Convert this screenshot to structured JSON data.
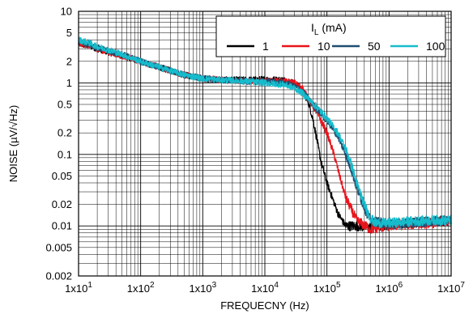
{
  "chart_data": {
    "type": "line",
    "xlabel": "FREQUECNY (Hz)",
    "ylabel": "NOISE (µV/√Hz)",
    "x_scale": "log",
    "y_scale": "log",
    "xlim": [
      10,
      10000000
    ],
    "ylim": [
      0.002,
      10
    ],
    "grid": true,
    "x_ticks": [
      {
        "value": 10,
        "base": "1x10",
        "exp": "1"
      },
      {
        "value": 100,
        "base": "1x10",
        "exp": "2"
      },
      {
        "value": 1000,
        "base": "1x10",
        "exp": "3"
      },
      {
        "value": 10000,
        "base": "1x10",
        "exp": "4"
      },
      {
        "value": 100000,
        "base": "1x10",
        "exp": "5"
      },
      {
        "value": 1000000,
        "base": "1x10",
        "exp": "6"
      },
      {
        "value": 10000000,
        "base": "1x10",
        "exp": "7"
      }
    ],
    "y_ticks": [
      {
        "value": 10,
        "label": "10"
      },
      {
        "value": 5,
        "label": "5"
      },
      {
        "value": 2,
        "label": "2"
      },
      {
        "value": 1,
        "label": "1"
      },
      {
        "value": 0.5,
        "label": "0.5"
      },
      {
        "value": 0.2,
        "label": "0.2"
      },
      {
        "value": 0.1,
        "label": "0.1"
      },
      {
        "value": 0.05,
        "label": "0.05"
      },
      {
        "value": 0.02,
        "label": "0.02"
      },
      {
        "value": 0.01,
        "label": "0.01"
      },
      {
        "value": 0.005,
        "label": "0.005"
      },
      {
        "value": 0.002,
        "label": "0.002"
      }
    ],
    "legend": {
      "title_main": "I",
      "title_sub": "L",
      "title_rest": " (mA)",
      "placement": "top-right"
    },
    "series": [
      {
        "name": "1",
        "color": "#000000",
        "x": [
          10,
          15,
          20,
          30,
          50,
          100,
          200,
          500,
          1000,
          2000,
          5000,
          10000,
          20000,
          30000,
          40000,
          50000,
          60000,
          70000,
          80000,
          100000,
          150000,
          200000,
          300000,
          500000,
          1000000,
          2000000,
          5000000,
          10000000
        ],
        "y": [
          3.5,
          3.3,
          3.0,
          2.7,
          2.4,
          2.0,
          1.65,
          1.3,
          1.15,
          1.1,
          1.1,
          1.12,
          1.1,
          1.0,
          0.8,
          0.55,
          0.3,
          0.15,
          0.08,
          0.04,
          0.015,
          0.01,
          0.01,
          0.0095,
          0.0105,
          0.011,
          0.0115,
          0.012
        ]
      },
      {
        "name": "10",
        "color": "#e8141c",
        "x": [
          10,
          15,
          20,
          30,
          50,
          100,
          200,
          500,
          1000,
          2000,
          5000,
          10000,
          20000,
          30000,
          40000,
          50000,
          70000,
          100000,
          130000,
          160000,
          200000,
          300000,
          500000,
          1000000,
          2000000,
          5000000,
          10000000
        ],
        "y": [
          3.6,
          3.3,
          3.0,
          2.7,
          2.4,
          2.0,
          1.65,
          1.3,
          1.15,
          1.1,
          1.05,
          1.05,
          1.05,
          1.0,
          0.85,
          0.6,
          0.38,
          0.2,
          0.1,
          0.05,
          0.025,
          0.012,
          0.009,
          0.01,
          0.0105,
          0.011,
          0.012
        ]
      },
      {
        "name": "50",
        "color": "#1f4e70",
        "x": [
          10,
          15,
          20,
          30,
          50,
          100,
          200,
          500,
          1000,
          2000,
          5000,
          10000,
          20000,
          30000,
          40000,
          50000,
          70000,
          100000,
          150000,
          200000,
          250000,
          300000,
          400000,
          500000,
          1000000,
          2000000,
          5000000,
          10000000
        ],
        "y": [
          3.8,
          3.5,
          3.1,
          2.8,
          2.5,
          2.0,
          1.65,
          1.3,
          1.15,
          1.1,
          1.05,
          1.05,
          1.0,
          0.9,
          0.75,
          0.6,
          0.42,
          0.3,
          0.18,
          0.1,
          0.06,
          0.035,
          0.018,
          0.012,
          0.0105,
          0.011,
          0.0115,
          0.012
        ]
      },
      {
        "name": "100",
        "color": "#17bccc",
        "x": [
          10,
          15,
          20,
          30,
          50,
          100,
          200,
          500,
          1000,
          2000,
          5000,
          10000,
          20000,
          30000,
          40000,
          50000,
          70000,
          100000,
          150000,
          200000,
          250000,
          300000,
          400000,
          500000,
          600000,
          1000000,
          2000000,
          5000000,
          10000000
        ],
        "y": [
          4.0,
          3.6,
          3.2,
          2.9,
          2.5,
          2.0,
          1.65,
          1.3,
          1.15,
          1.1,
          1.05,
          1.0,
          0.95,
          0.85,
          0.72,
          0.6,
          0.45,
          0.32,
          0.2,
          0.12,
          0.07,
          0.04,
          0.02,
          0.013,
          0.011,
          0.011,
          0.0115,
          0.012,
          0.012
        ]
      }
    ]
  }
}
